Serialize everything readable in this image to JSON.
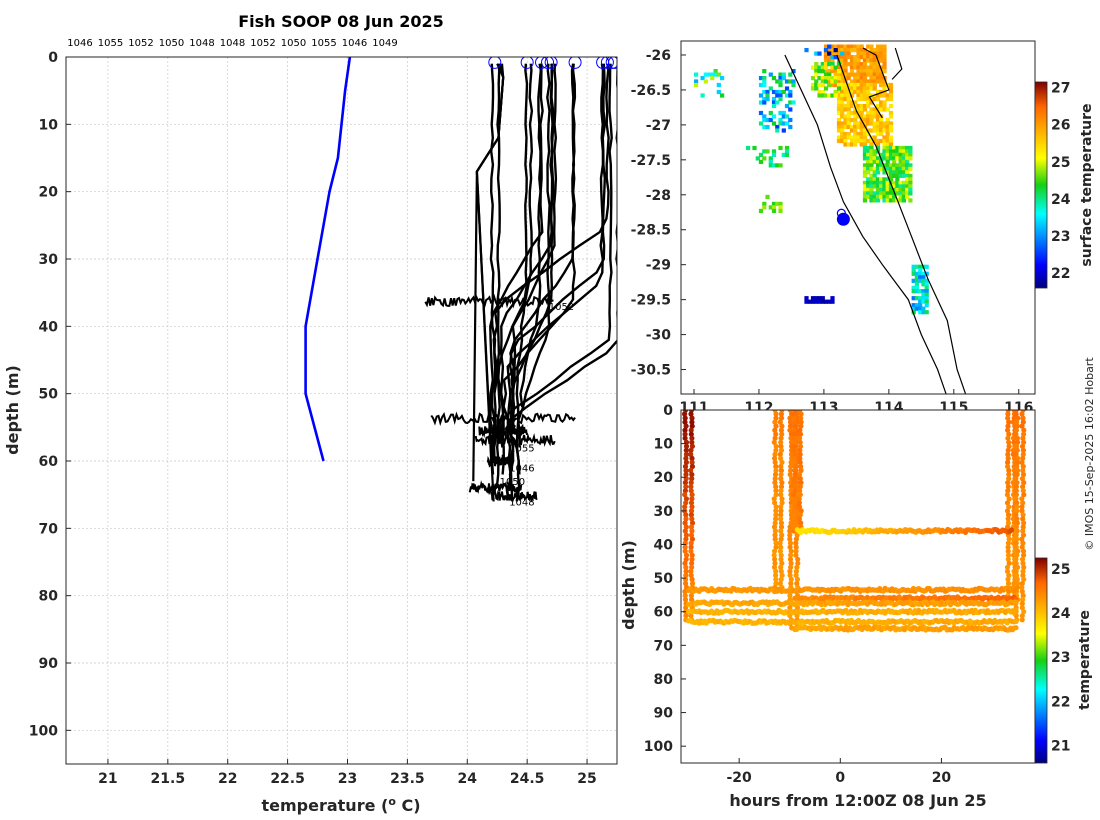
{
  "page_title": "Fish SOOP 08 Jun 2025",
  "credit": "© IMOS 15-Sep-2025 16:02 Hobart",
  "colors": {
    "profile": "#0000ff",
    "casts": "#000000",
    "coast": "#000000"
  },
  "chart_data": [
    {
      "id": "profile_panel",
      "type": "line",
      "title": "Fish SOOP 08 Jun 2025",
      "xlabel": "temperature (° C)",
      "ylabel": "depth (m)",
      "xlim": [
        20.65,
        25.25
      ],
      "ylim": [
        105,
        0
      ],
      "xticks": [
        21,
        21.5,
        22,
        22.5,
        23,
        23.5,
        24,
        24.5,
        25
      ],
      "xtick_labels": [
        "21",
        "21.5",
        "22",
        "22.5",
        "23",
        "23.5",
        "24",
        "24.5",
        "25"
      ],
      "yticks": [
        0,
        10,
        20,
        30,
        40,
        50,
        60,
        70,
        80,
        90,
        100
      ],
      "top_labels": [
        "1046",
        "1055",
        "1052",
        "1050",
        "1048",
        "1048",
        "1052",
        "1050",
        "1055",
        "1046",
        "1049"
      ],
      "reference_profile": {
        "temperature": [
          23.02,
          22.98,
          22.92,
          22.85,
          22.75,
          22.65,
          22.65,
          22.8
        ],
        "depth": [
          0,
          5,
          15,
          20,
          30,
          40,
          50,
          60
        ]
      },
      "cast_labels": [
        {
          "text": "1052",
          "temperature": 24.68,
          "depth": 37
        },
        {
          "text": "1048",
          "temperature": 24.2,
          "depth": 55
        },
        {
          "text": "1055",
          "temperature": 24.35,
          "depth": 58
        },
        {
          "text": "1046",
          "temperature": 24.35,
          "depth": 61
        },
        {
          "text": "1050",
          "temperature": 24.27,
          "depth": 63
        },
        {
          "text": "1048",
          "temperature": 24.35,
          "depth": 66
        }
      ],
      "surface_markers_temperature": [
        24.23,
        24.5,
        24.62,
        24.67,
        24.7,
        24.9,
        25.13,
        25.17,
        25.21,
        25.23
      ]
    },
    {
      "id": "map_panel",
      "type": "heatmap",
      "xlim": [
        110.8,
        116.25
      ],
      "ylim": [
        -30.85,
        -25.8
      ],
      "xtick_labels": [
        "111",
        "112",
        "113",
        "114",
        "115",
        "116"
      ],
      "ytick_labels": [
        "-26",
        "-26.5",
        "-27",
        "-27.5",
        "-28",
        "-28.5",
        "-29",
        "-29.5",
        "-30",
        "-30.5"
      ],
      "yticks": [
        -26,
        -26.5,
        -27,
        -27.5,
        -28,
        -28.5,
        -29,
        -29.5,
        -30,
        -30.5
      ],
      "colorbar_label": "surface temperature",
      "colorbar_ticks": [
        "22",
        "23",
        "24",
        "25",
        "26",
        "27"
      ],
      "clim": [
        21.6,
        27.15
      ],
      "vessel_lon": 113.3,
      "vessel_lat": -28.35
    },
    {
      "id": "time_depth_panel",
      "type": "scatter",
      "xlabel": "hours from 12:00Z 08 Jun 25",
      "ylabel": "depth (m)",
      "xlim": [
        -31.5,
        38.5
      ],
      "ylim": [
        105,
        0
      ],
      "xticks": [
        -20,
        0,
        20
      ],
      "xtick_labels": [
        "-20",
        "0",
        "20"
      ],
      "yticks": [
        0,
        10,
        20,
        30,
        40,
        50,
        60,
        70,
        80,
        90,
        100
      ],
      "colorbar_label": "temperature",
      "colorbar_ticks": [
        "21",
        "22",
        "23",
        "24",
        "25"
      ],
      "clim": [
        20.6,
        25.25
      ],
      "segments": [
        {
          "kind": "vertical",
          "t": -30,
          "depth": [
            0,
            63
          ],
          "temp": [
            25.2,
            24.4
          ]
        },
        {
          "kind": "vertical",
          "t": -12.3,
          "depth": [
            0,
            55
          ],
          "temp": [
            24.5,
            24.3
          ]
        },
        {
          "kind": "vertical",
          "t": -9.2,
          "depth": [
            0,
            65
          ],
          "temp": [
            24.6,
            24.3
          ]
        },
        {
          "kind": "vertical",
          "t": -8.5,
          "depth": [
            0,
            37
          ],
          "temp": [
            24.6,
            24.5
          ]
        },
        {
          "kind": "vertical",
          "t": 33.8,
          "depth": [
            0,
            57
          ],
          "temp": [
            24.6,
            24.3
          ]
        },
        {
          "kind": "vertical",
          "t": 35.5,
          "depth": [
            0,
            63
          ],
          "temp": [
            24.6,
            24.3
          ]
        },
        {
          "kind": "horizontal",
          "depth": 36,
          "t": [
            -8.5,
            34
          ],
          "temp": [
            23.7,
            24.8
          ]
        },
        {
          "kind": "horizontal",
          "depth": 53.5,
          "t": [
            -30,
            35
          ],
          "temp": [
            24.3,
            24.4
          ]
        },
        {
          "kind": "horizontal",
          "depth": 56,
          "t": [
            -9,
            35
          ],
          "temp": [
            24.4,
            24.7
          ]
        },
        {
          "kind": "horizontal",
          "depth": 57.5,
          "t": [
            -30,
            35
          ],
          "temp": [
            24.2,
            24.3
          ]
        },
        {
          "kind": "horizontal",
          "depth": 60,
          "t": [
            -30,
            35
          ],
          "temp": [
            24.1,
            24.2
          ]
        },
        {
          "kind": "horizontal",
          "depth": 63,
          "t": [
            -30,
            35
          ],
          "temp": [
            24.1,
            24.2
          ]
        },
        {
          "kind": "horizontal",
          "depth": 65,
          "t": [
            -9,
            35
          ],
          "temp": [
            24.2,
            24.3
          ]
        }
      ]
    }
  ]
}
